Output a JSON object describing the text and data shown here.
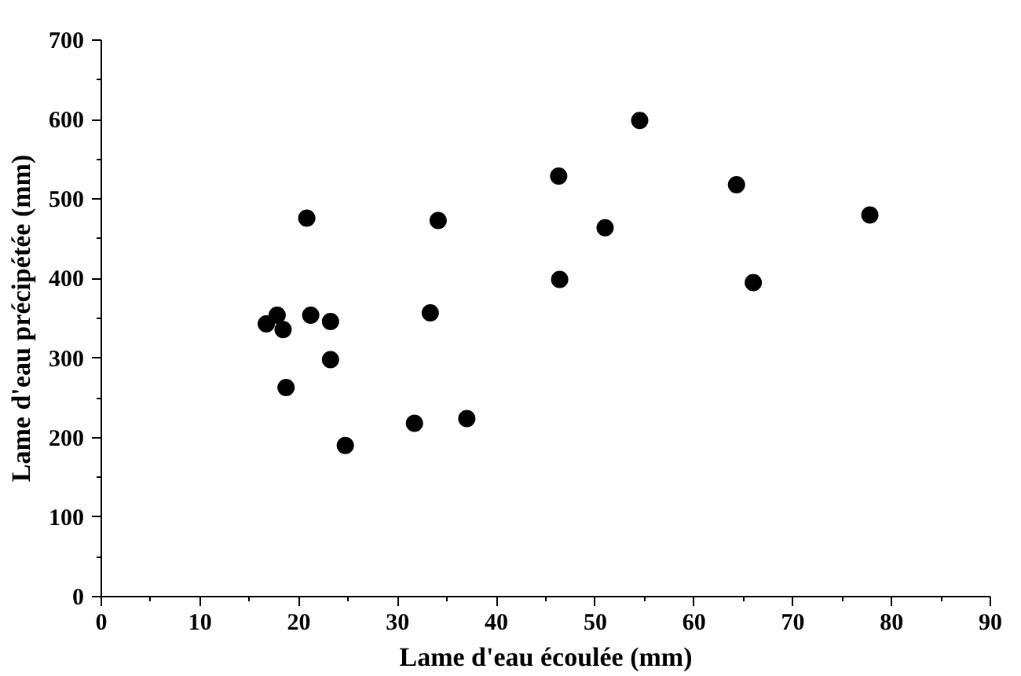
{
  "chart_data": {
    "type": "scatter",
    "xlabel": "Lame d'eau écoulée (mm)",
    "ylabel": "Lame d'eau précipétée (mm)",
    "x": [
      16.7,
      17.8,
      18.4,
      21.2,
      23.2,
      23.2,
      18.7,
      24.7,
      31.7,
      33.3,
      54.5,
      46.3,
      64.3,
      34.1,
      51.0,
      77.8,
      46.4,
      66.0,
      37.0,
      20.8
    ],
    "series": [
      {
        "color": "#000000",
        "values": [
          343,
          354,
          336,
          354,
          346,
          298,
          263,
          190,
          218,
          357,
          599,
          529,
          518,
          473,
          464,
          480,
          399,
          395,
          224,
          476
        ]
      }
    ],
    "xlim": [
      0,
      90
    ],
    "xticks": [
      0,
      10,
      20,
      30,
      40,
      50,
      60,
      70,
      80,
      90
    ],
    "ylim": [
      0,
      700
    ],
    "yticks": [
      0,
      100,
      200,
      300,
      400,
      500,
      600,
      700
    ],
    "marker": "circle",
    "grid": false
  }
}
